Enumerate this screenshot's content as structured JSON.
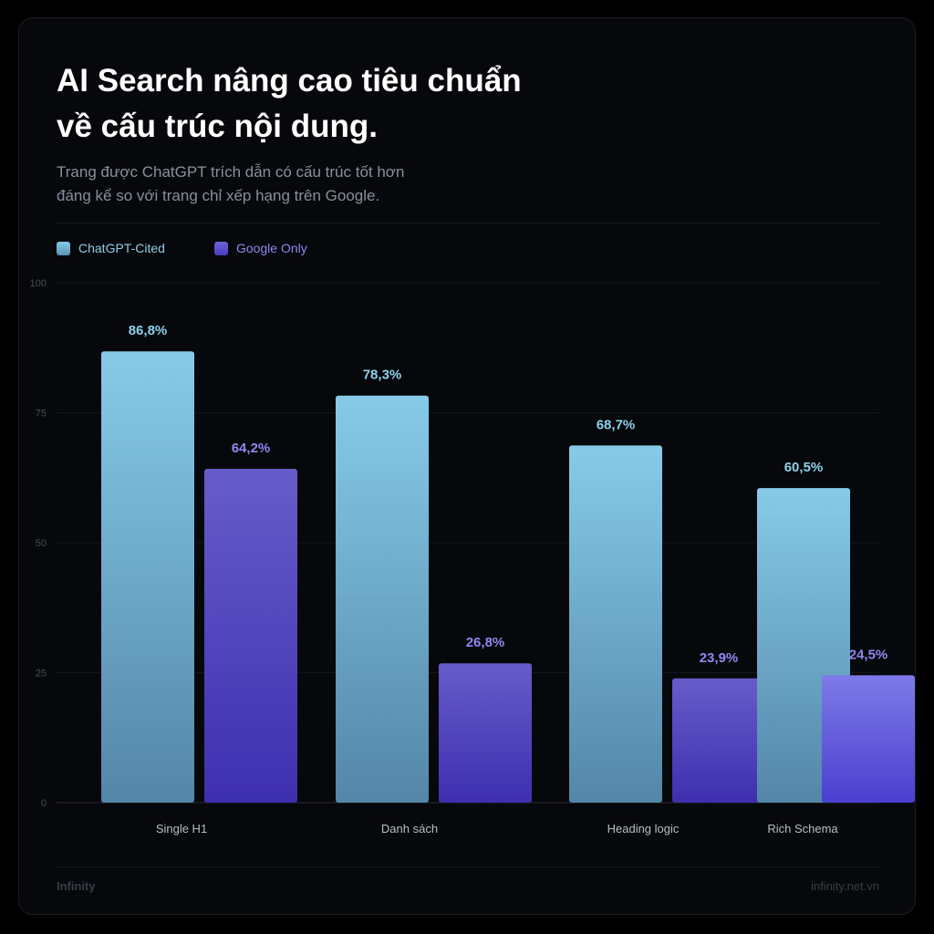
{
  "header": {
    "title_line1": "AI Search nâng cao tiêu chuẩn",
    "title_line2": "về cấu trúc nội dung.",
    "subtitle_line1": "Trang được ChatGPT trích dẫn có cấu trúc tốt hơn",
    "subtitle_line2": "đáng kể so với trang chỉ xếp hạng trên Google."
  },
  "legend": {
    "items": [
      {
        "label": "ChatGPT-Cited",
        "color": "#86cbe8"
      },
      {
        "label": "Google Only",
        "color": "#6d63d8"
      }
    ]
  },
  "chart_data": {
    "type": "bar",
    "categories": [
      "Single H1",
      "Danh sách",
      "Heading logic",
      "Rich Schema"
    ],
    "series": [
      {
        "name": "ChatGPT-Cited",
        "values": [
          86.8,
          78.3,
          68.7,
          60.5
        ],
        "labels": [
          "86,8%",
          "78,3%",
          "68,7%",
          "60,5%"
        ]
      },
      {
        "name": "Google Only",
        "values": [
          64.2,
          26.8,
          23.9,
          24.5
        ],
        "labels": [
          "64,2%",
          "26,8%",
          "23,9%",
          "24,5%"
        ]
      }
    ],
    "ylim": [
      0,
      100
    ],
    "yticks": [
      0,
      25,
      50,
      75,
      100
    ],
    "ytick_labels": [
      "0",
      "25",
      "50",
      "75",
      "100"
    ],
    "grid": true,
    "legend_position": "top-left"
  },
  "footer": {
    "brand": "Infinity",
    "url": "infinity.net.vn"
  }
}
